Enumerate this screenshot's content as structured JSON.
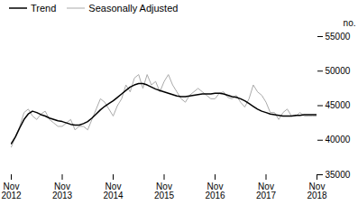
{
  "chart_data": {
    "type": "line",
    "categories": [
      "Nov\n2012",
      null,
      null,
      null,
      null,
      null,
      null,
      null,
      null,
      null,
      null,
      null,
      "Nov\n2013",
      null,
      null,
      null,
      null,
      null,
      null,
      null,
      null,
      null,
      null,
      null,
      "Nov\n2014",
      null,
      null,
      null,
      null,
      null,
      null,
      null,
      null,
      null,
      null,
      null,
      "Nov\n2015",
      null,
      null,
      null,
      null,
      null,
      null,
      null,
      null,
      null,
      null,
      null,
      "Nov\n2016",
      null,
      null,
      null,
      null,
      null,
      null,
      null,
      null,
      null,
      null,
      null,
      "Nov\n2017",
      null,
      null,
      null,
      null,
      null,
      null,
      null,
      null,
      null,
      null,
      null,
      "Nov\n2018"
    ],
    "series": [
      {
        "name": "Trend",
        "color": "#000000",
        "values": [
          39500,
          40500,
          41800,
          43000,
          43800,
          44200,
          44000,
          43700,
          43500,
          43200,
          43000,
          42800,
          42700,
          42500,
          42300,
          42200,
          42200,
          42400,
          42700,
          43200,
          43800,
          44400,
          44900,
          45300,
          45700,
          46200,
          46700,
          47200,
          47700,
          48000,
          48200,
          48200,
          48000,
          47700,
          47400,
          47200,
          47000,
          46800,
          46600,
          46400,
          46300,
          46300,
          46400,
          46500,
          46600,
          46700,
          46700,
          46700,
          46800,
          46800,
          46700,
          46500,
          46300,
          46200,
          46000,
          45700,
          45300,
          44900,
          44500,
          44200,
          44000,
          43800,
          43700,
          43600,
          43500,
          43500,
          43500,
          43600,
          43600,
          43700,
          43700,
          43700,
          43700
        ]
      },
      {
        "name": "Seasonally Adjusted",
        "color": "#aaaaaa",
        "values": [
          39000,
          40500,
          42000,
          44000,
          44500,
          43500,
          43000,
          43800,
          44200,
          43000,
          42500,
          42000,
          42000,
          42500,
          43000,
          41500,
          42000,
          42000,
          41500,
          43000,
          44500,
          46000,
          45500,
          44500,
          43500,
          45000,
          46000,
          48000,
          47000,
          49000,
          49500,
          47500,
          49500,
          48000,
          48500,
          47000,
          48500,
          49500,
          48000,
          47000,
          46000,
          45500,
          46500,
          47000,
          47500,
          47000,
          46500,
          46000,
          46000,
          46800,
          47000,
          46200,
          46000,
          46500,
          45500,
          44800,
          46000,
          48000,
          47000,
          46500,
          45500,
          44000,
          44000,
          43000,
          44000,
          44500,
          43500,
          43500,
          44000,
          43500,
          43500,
          43500,
          43500
        ]
      }
    ],
    "ylabel": "no.",
    "ylim": [
      35000,
      55000
    ],
    "yticks": [
      35000,
      40000,
      45000,
      50000,
      55000
    ],
    "grid": false,
    "legend": "upper left"
  }
}
